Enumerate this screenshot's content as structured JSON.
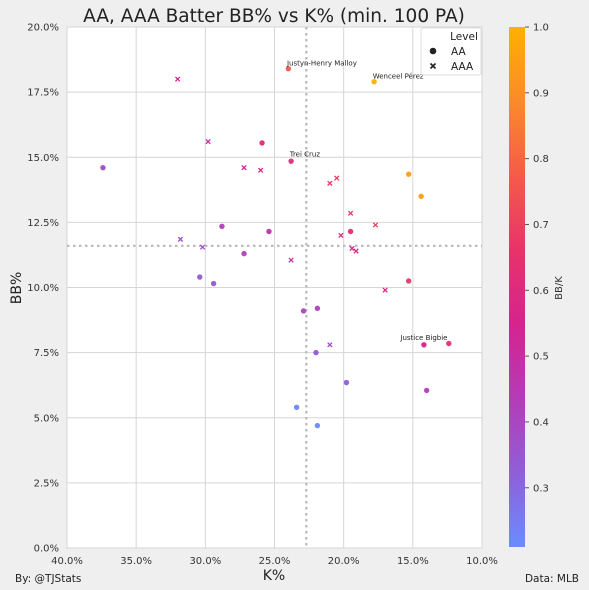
{
  "chart_data": {
    "type": "scatter",
    "title": "AA, AAA Batter BB% vs K% (min. 100 PA)",
    "xlabel": "K%",
    "ylabel": "BB%",
    "xlim": [
      40,
      10
    ],
    "ylim": [
      0,
      20
    ],
    "x_ticks": [
      "40.0%",
      "35.0%",
      "30.0%",
      "25.0%",
      "20.0%",
      "15.0%",
      "10.0%"
    ],
    "y_ticks": [
      "0.0%",
      "2.5%",
      "5.0%",
      "7.5%",
      "10.0%",
      "12.5%",
      "15.0%",
      "17.5%",
      "20.0%"
    ],
    "grid": true,
    "x_reference_line": 22.7,
    "y_reference_line": 11.6,
    "legend": {
      "title": "Level",
      "position": "top-right",
      "entries": [
        {
          "label": "AA",
          "marker": "circle"
        },
        {
          "label": "AAA",
          "marker": "x"
        }
      ]
    },
    "colorbar": {
      "label": "BB/K",
      "min": 0.21,
      "max": 1.0,
      "ticks": [
        "0.3",
        "0.4",
        "0.5",
        "0.6",
        "0.7",
        "0.8",
        "0.9",
        "1.0"
      ],
      "colors": [
        "#6a8cff",
        "#8f5fd8",
        "#b43cb6",
        "#d6238e",
        "#e8336a",
        "#f55a4a",
        "#fb8a2a",
        "#ffb000"
      ]
    },
    "series": [
      {
        "name": "AA",
        "marker": "circle",
        "points": [
          {
            "x": 37.4,
            "y": 14.6,
            "c": 0.39
          },
          {
            "x": 28.8,
            "y": 12.35,
            "c": 0.43
          },
          {
            "x": 25.9,
            "y": 15.55,
            "c": 0.6
          },
          {
            "x": 25.4,
            "y": 12.15,
            "c": 0.48
          },
          {
            "x": 27.2,
            "y": 11.3,
            "c": 0.42
          },
          {
            "x": 30.4,
            "y": 10.4,
            "c": 0.34
          },
          {
            "x": 29.4,
            "y": 10.15,
            "c": 0.35
          },
          {
            "x": 23.8,
            "y": 14.85,
            "c": 0.62
          },
          {
            "x": 22.9,
            "y": 9.1,
            "c": 0.4
          },
          {
            "x": 21.9,
            "y": 9.2,
            "c": 0.42
          },
          {
            "x": 22.0,
            "y": 7.5,
            "c": 0.34
          },
          {
            "x": 19.8,
            "y": 6.35,
            "c": 0.32
          },
          {
            "x": 23.4,
            "y": 5.4,
            "c": 0.23
          },
          {
            "x": 21.9,
            "y": 4.7,
            "c": 0.22
          },
          {
            "x": 19.5,
            "y": 12.15,
            "c": 0.62
          },
          {
            "x": 15.3,
            "y": 14.35,
            "c": 0.94
          },
          {
            "x": 14.4,
            "y": 13.5,
            "c": 0.94
          },
          {
            "x": 15.3,
            "y": 10.25,
            "c": 0.67
          },
          {
            "x": 14.2,
            "y": 7.8,
            "c": 0.55
          },
          {
            "x": 14.0,
            "y": 6.05,
            "c": 0.43
          },
          {
            "x": 12.4,
            "y": 7.85,
            "c": 0.63
          },
          {
            "x": 24.0,
            "y": 18.4,
            "c": 0.77
          },
          {
            "x": 17.8,
            "y": 17.9,
            "c": 1.0
          }
        ]
      },
      {
        "name": "AAA",
        "marker": "x",
        "points": [
          {
            "x": 32.0,
            "y": 18.0,
            "c": 0.56
          },
          {
            "x": 29.8,
            "y": 15.6,
            "c": 0.52
          },
          {
            "x": 27.2,
            "y": 14.6,
            "c": 0.53
          },
          {
            "x": 26.0,
            "y": 14.5,
            "c": 0.55
          },
          {
            "x": 31.8,
            "y": 11.85,
            "c": 0.37
          },
          {
            "x": 30.2,
            "y": 11.55,
            "c": 0.38
          },
          {
            "x": 23.8,
            "y": 11.05,
            "c": 0.46
          },
          {
            "x": 21.0,
            "y": 14.0,
            "c": 0.67
          },
          {
            "x": 20.5,
            "y": 14.2,
            "c": 0.69
          },
          {
            "x": 19.5,
            "y": 12.85,
            "c": 0.66
          },
          {
            "x": 17.7,
            "y": 12.4,
            "c": 0.7
          },
          {
            "x": 20.2,
            "y": 12.0,
            "c": 0.6
          },
          {
            "x": 19.4,
            "y": 11.5,
            "c": 0.59
          },
          {
            "x": 19.1,
            "y": 11.4,
            "c": 0.6
          },
          {
            "x": 17.0,
            "y": 9.9,
            "c": 0.58
          },
          {
            "x": 21.0,
            "y": 7.8,
            "c": 0.37
          }
        ]
      }
    ],
    "annotations": [
      {
        "text": "Justyn-Henry Malloy",
        "x": 24.1,
        "y": 18.45
      },
      {
        "text": "Wenceel Pérez",
        "x": 17.9,
        "y": 17.95
      },
      {
        "text": "Trei Cruz",
        "x": 23.9,
        "y": 14.95
      },
      {
        "text": "Justice Bigbie",
        "x": 15.9,
        "y": 7.9
      }
    ]
  },
  "footer": {
    "left": "By: @TJStats",
    "right": "Data: MLB"
  }
}
